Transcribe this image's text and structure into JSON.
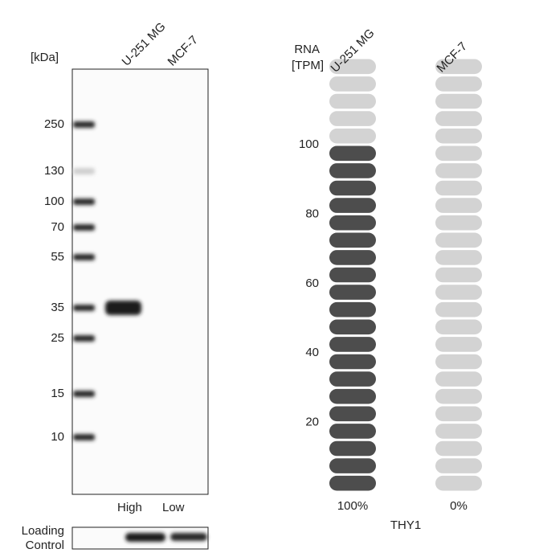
{
  "blot": {
    "unit_label": "[kDa]",
    "lanes": [
      "U-251 MG",
      "MCF-7"
    ],
    "markers": [
      250,
      130,
      100,
      70,
      55,
      35,
      25,
      15,
      10
    ],
    "levels": [
      "High",
      "Low"
    ],
    "loading_control": [
      "Loading",
      "Control"
    ]
  },
  "chart_data": {
    "type": "pill",
    "axis_label": [
      "RNA",
      "[TPM]"
    ],
    "categories": [
      "U-251 MG",
      "MCF-7"
    ],
    "values": [
      100,
      0
    ],
    "percent_labels": [
      "100%",
      "0%"
    ],
    "gene": "THY1",
    "ylim": [
      0,
      125
    ],
    "yticks": [
      20,
      40,
      60,
      80,
      100
    ],
    "pill_step": 5,
    "colors": {
      "on": "#4d4d4d",
      "off": "#d3d3d3"
    }
  }
}
